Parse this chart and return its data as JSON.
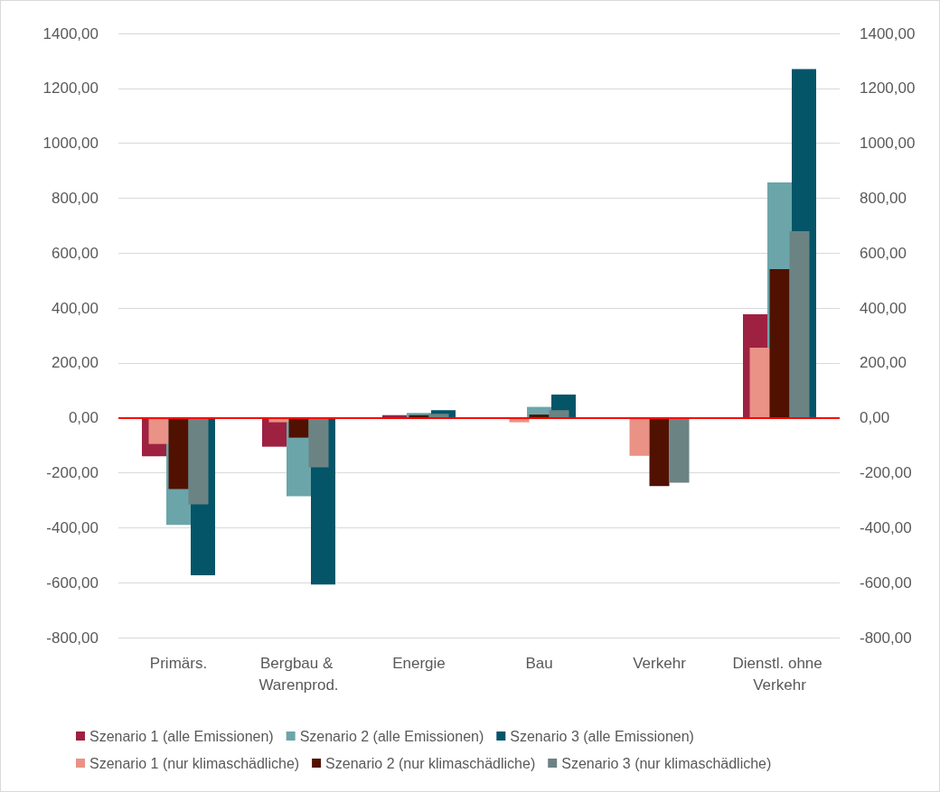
{
  "chart_data": {
    "type": "bar",
    "categories": [
      "Primärs.",
      "Bergbau & Warenprod.",
      "Energie",
      "Bau",
      "Verkehr",
      "Dienstl. ohne Verkehr"
    ],
    "series": [
      {
        "name": "Szenario 1 (alle Emissionen)",
        "color": "#9e2142",
        "values": [
          -140,
          -105,
          10,
          null,
          null,
          377
        ]
      },
      {
        "name": "Szenario 2 (alle Emissionen)",
        "color": "#6ba5a9",
        "values": [
          -390,
          -285,
          18,
          40,
          null,
          857
        ]
      },
      {
        "name": "Szenario 3 (alle Emissionen)",
        "color": "#045568",
        "values": [
          -573,
          -607,
          28,
          85,
          null,
          1270
        ]
      },
      {
        "name": "Szenario 1 (nur klimaschädliche)",
        "color": "#e99285",
        "axis": "y2",
        "values": [
          -95,
          -16,
          null,
          -16,
          -138,
          256
        ]
      },
      {
        "name": "Szenario 2 (nur klimaschädliche)",
        "color": "#511100",
        "axis": "y2",
        "values": [
          -259,
          -72,
          10,
          12,
          -248,
          542
        ]
      },
      {
        "name": "Szenario 3 (nur klimaschädliche)",
        "color": "#6c8384",
        "axis": "y2",
        "values": [
          -315,
          -180,
          15,
          28,
          -236,
          680
        ]
      }
    ],
    "ylim": [
      -800,
      1400
    ],
    "yticks": [
      {
        "value": -800,
        "label": "-800,00"
      },
      {
        "value": -600,
        "label": "-600,00"
      },
      {
        "value": -400,
        "label": "-400,00"
      },
      {
        "value": -200,
        "label": "-200,00"
      },
      {
        "value": 0,
        "label": "0,00"
      },
      {
        "value": 200,
        "label": "200,00"
      },
      {
        "value": 400,
        "label": "400,00"
      },
      {
        "value": 600,
        "label": "600,00"
      },
      {
        "value": 800,
        "label": "800,00"
      },
      {
        "value": 1000,
        "label": "1000,00"
      },
      {
        "value": 1200,
        "label": "1200,00"
      },
      {
        "value": 1400,
        "label": "1400,00"
      }
    ],
    "y2lim": [
      -800,
      1400
    ],
    "y2ticks": [
      {
        "value": -800,
        "label": "-800,00"
      },
      {
        "value": -600,
        "label": "-600,00"
      },
      {
        "value": -400,
        "label": "-400,00"
      },
      {
        "value": -200,
        "label": "-200,00"
      },
      {
        "value": 0,
        "label": "0,00"
      },
      {
        "value": 200,
        "label": "200,00"
      },
      {
        "value": 400,
        "label": "400,00"
      },
      {
        "value": 600,
        "label": "600,00"
      },
      {
        "value": 800,
        "label": "800,00"
      },
      {
        "value": 1000,
        "label": "1000,00"
      },
      {
        "value": 1200,
        "label": "1200,00"
      },
      {
        "value": 1400,
        "label": "1400,00"
      }
    ],
    "ref_lines": [
      {
        "axis": "y",
        "value": 0,
        "color": "#ff0000"
      }
    ],
    "grid": "y",
    "legend": "bottom"
  }
}
